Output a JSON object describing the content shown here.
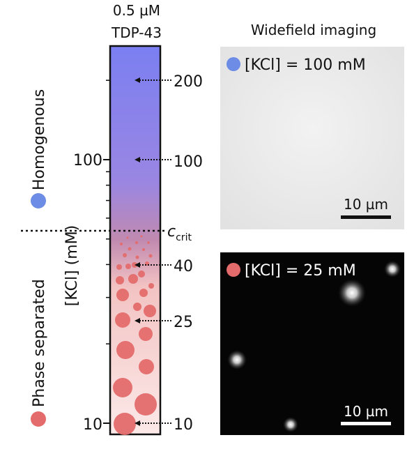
{
  "column": {
    "concentration": "0.5 µM",
    "protein": "TDP-43",
    "gradient_top_color": "#7b7ff2",
    "gradient_bottom_color": "#fbe9e8"
  },
  "axis": {
    "label": "[KCl] (mM)",
    "scale": "log",
    "tick_labels": [
      "100",
      "10"
    ],
    "critical_label_main": "c",
    "critical_label_sub": "crit"
  },
  "markers": [
    "200",
    "100",
    "40",
    "25",
    "10"
  ],
  "states": {
    "homogenous": {
      "label": "Homogenous",
      "color": "#6c8ce6"
    },
    "phase_separated": {
      "label": "Phase separated",
      "color": "#e46b6b"
    }
  },
  "panels": {
    "heading": "Widefield imaging",
    "top": {
      "label": "[KCl] = 100 mM",
      "dot_color": "#6c8ce6",
      "scale_bar": "10 µm"
    },
    "bottom": {
      "label": "[KCl] = 25 mM",
      "dot_color": "#e46b6b",
      "scale_bar": "10 µm"
    }
  }
}
